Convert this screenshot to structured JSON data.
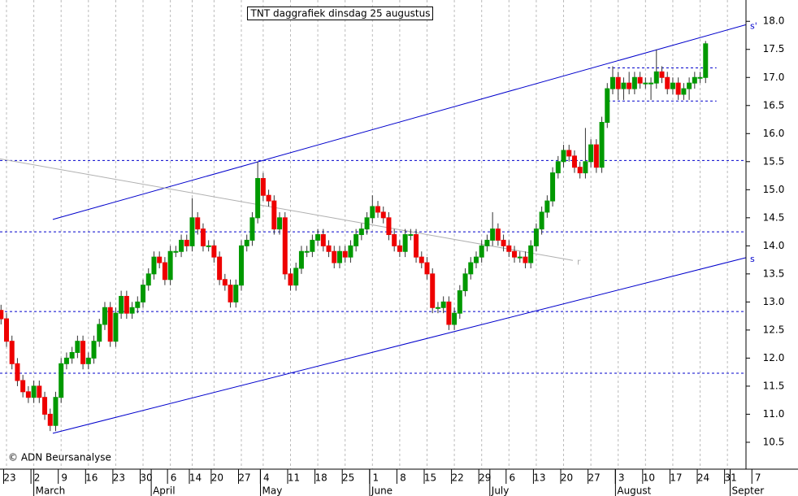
{
  "chart_data": {
    "type": "candlestick",
    "title": "TNT daggrafiek dinsdag 25 augustus",
    "credit": "© ADN Beursanalyse",
    "up_color": "#009900",
    "down_color": "#ee0000",
    "x": [
      -1,
      0,
      1,
      2,
      3,
      4,
      5,
      6,
      7,
      8,
      9,
      10,
      11,
      12,
      13,
      14,
      15,
      16,
      17,
      18,
      19,
      20,
      21,
      22,
      23,
      24,
      25,
      26,
      27,
      28,
      29,
      30,
      31,
      32,
      33,
      34,
      35,
      36,
      37,
      38,
      39,
      40,
      41,
      42,
      43,
      44,
      45,
      46,
      47,
      48,
      49,
      50,
      51,
      52,
      53,
      54,
      55,
      56,
      57,
      58,
      59,
      60,
      61,
      62,
      63,
      64,
      65,
      66,
      67,
      68,
      69,
      70,
      71,
      72,
      73,
      74,
      75,
      76,
      77,
      78,
      79,
      80,
      81,
      82,
      83,
      84,
      85,
      86,
      87,
      88,
      89,
      90,
      91,
      92,
      93,
      94,
      95,
      96,
      97,
      98,
      99,
      100,
      101,
      102,
      103,
      104,
      105,
      106,
      107,
      108,
      109,
      110,
      111,
      112,
      113,
      114,
      115,
      116,
      117,
      118,
      119,
      120,
      121,
      122,
      123,
      124,
      125,
      126,
      127,
      128
    ],
    "open": [
      12.85,
      12.7,
      12.3,
      11.9,
      11.6,
      11.4,
      11.3,
      11.5,
      11.3,
      11.0,
      10.8,
      11.3,
      11.9,
      12.0,
      12.1,
      12.3,
      11.9,
      12.0,
      12.3,
      12.6,
      12.9,
      12.3,
      12.8,
      13.1,
      12.8,
      12.9,
      13.0,
      13.3,
      13.5,
      13.8,
      13.7,
      13.4,
      13.9,
      13.9,
      14.1,
      14.0,
      14.5,
      14.3,
      14.0,
      14.0,
      13.8,
      13.4,
      13.3,
      13.0,
      13.3,
      14.0,
      14.1,
      14.5,
      15.2,
      14.9,
      14.8,
      14.3,
      14.5,
      13.5,
      13.3,
      13.6,
      13.9,
      13.9,
      14.1,
      14.2,
      14.0,
      13.9,
      13.7,
      13.9,
      13.8,
      14.0,
      14.2,
      14.3,
      14.5,
      14.7,
      14.6,
      14.5,
      14.2,
      14.0,
      13.9,
      14.2,
      14.2,
      13.8,
      13.7,
      13.5,
      12.9,
      12.9,
      13.0,
      12.6,
      12.8,
      13.2,
      13.5,
      13.7,
      13.8,
      14.0,
      14.1,
      14.3,
      14.1,
      14.0,
      13.9,
      13.8,
      13.8,
      13.7,
      14.0,
      14.3,
      14.6,
      14.8,
      15.3,
      15.5,
      15.7,
      15.6,
      15.4,
      15.3,
      15.5,
      15.8,
      15.4,
      16.2,
      16.8,
      17.0,
      16.8,
      16.9,
      16.8,
      17.0,
      16.9,
      16.9,
      16.9,
      17.1,
      17.0,
      16.8,
      16.9,
      16.7,
      16.8,
      16.9,
      17.0,
      17.0
    ],
    "high": [
      12.95,
      12.8,
      12.4,
      12.0,
      11.7,
      11.5,
      11.6,
      11.6,
      11.4,
      11.1,
      11.4,
      12.0,
      12.1,
      12.2,
      12.4,
      12.4,
      12.1,
      12.4,
      12.7,
      13.0,
      13.0,
      12.9,
      13.2,
      13.2,
      13.0,
      13.1,
      13.4,
      13.6,
      13.9,
      13.9,
      13.8,
      14.0,
      14.0,
      14.2,
      14.2,
      14.85,
      14.6,
      14.4,
      14.1,
      14.1,
      13.9,
      13.5,
      13.4,
      13.4,
      14.1,
      14.2,
      14.6,
      15.5,
      15.3,
      15.0,
      14.9,
      14.6,
      14.6,
      13.6,
      13.7,
      14.0,
      14.0,
      14.2,
      14.3,
      14.3,
      14.1,
      14.0,
      14.0,
      14.0,
      14.1,
      14.3,
      14.4,
      14.6,
      14.9,
      14.8,
      14.7,
      14.6,
      14.3,
      14.1,
      14.3,
      14.3,
      14.3,
      13.9,
      13.8,
      13.6,
      13.0,
      13.1,
      13.1,
      12.9,
      13.3,
      13.6,
      13.8,
      13.9,
      14.1,
      14.2,
      14.6,
      14.4,
      14.2,
      14.1,
      14.0,
      13.9,
      13.9,
      14.1,
      14.4,
      14.7,
      14.9,
      15.4,
      15.6,
      15.8,
      15.8,
      15.7,
      15.5,
      16.1,
      15.9,
      15.9,
      16.3,
      16.9,
      17.2,
      17.1,
      17.0,
      17.1,
      17.1,
      17.1,
      17.0,
      17.0,
      17.5,
      17.2,
      17.1,
      17.0,
      17.0,
      16.9,
      17.0,
      17.1,
      17.1,
      17.65
    ],
    "low": [
      12.6,
      12.2,
      11.8,
      11.5,
      11.3,
      11.2,
      11.2,
      11.2,
      10.9,
      10.7,
      10.7,
      11.2,
      11.8,
      11.9,
      12.0,
      11.8,
      11.8,
      11.9,
      12.2,
      12.5,
      12.2,
      12.2,
      12.7,
      12.7,
      12.7,
      12.8,
      12.9,
      13.2,
      13.4,
      13.6,
      13.3,
      13.3,
      13.8,
      13.8,
      13.9,
      13.9,
      14.2,
      13.9,
      13.9,
      13.7,
      13.3,
      13.2,
      12.9,
      12.9,
      13.2,
      13.9,
      14.0,
      14.4,
      14.8,
      14.7,
      14.2,
      14.2,
      13.4,
      13.2,
      13.2,
      13.5,
      13.8,
      13.8,
      14.0,
      13.9,
      13.8,
      13.6,
      13.6,
      13.7,
      13.7,
      13.9,
      14.1,
      14.2,
      14.4,
      14.5,
      14.4,
      14.1,
      13.9,
      13.8,
      13.8,
      14.1,
      13.7,
      13.6,
      13.4,
      12.8,
      12.8,
      12.8,
      12.5,
      12.5,
      12.7,
      13.1,
      13.4,
      13.6,
      13.7,
      13.9,
      14.0,
      14.0,
      13.9,
      13.8,
      13.7,
      13.7,
      13.6,
      13.6,
      13.9,
      14.2,
      14.5,
      14.7,
      15.2,
      15.4,
      15.5,
      15.3,
      15.2,
      15.2,
      15.4,
      15.3,
      15.3,
      16.1,
      16.7,
      16.6,
      16.6,
      16.7,
      16.7,
      16.8,
      16.8,
      16.6,
      16.8,
      16.9,
      16.7,
      16.7,
      16.6,
      16.6,
      16.6,
      16.8,
      16.9,
      16.9
    ],
    "close": [
      12.7,
      12.3,
      11.9,
      11.6,
      11.4,
      11.3,
      11.5,
      11.3,
      11.0,
      10.8,
      11.3,
      11.9,
      12.0,
      12.1,
      12.3,
      11.9,
      12.0,
      12.3,
      12.6,
      12.9,
      12.3,
      12.8,
      13.1,
      12.8,
      12.9,
      13.0,
      13.3,
      13.5,
      13.8,
      13.7,
      13.4,
      13.9,
      13.9,
      14.1,
      14.0,
      14.5,
      14.3,
      14.0,
      14.0,
      13.8,
      13.4,
      13.3,
      13.0,
      13.3,
      14.0,
      14.1,
      14.5,
      15.2,
      14.9,
      14.8,
      14.3,
      14.5,
      13.5,
      13.3,
      13.6,
      13.9,
      13.9,
      14.1,
      14.2,
      14.0,
      13.9,
      13.7,
      13.9,
      13.8,
      14.0,
      14.2,
      14.3,
      14.5,
      14.7,
      14.6,
      14.5,
      14.2,
      14.0,
      13.9,
      14.2,
      14.2,
      13.8,
      13.7,
      13.5,
      12.9,
      12.9,
      13.0,
      12.6,
      12.8,
      13.2,
      13.5,
      13.7,
      13.8,
      14.0,
      14.1,
      14.3,
      14.1,
      14.0,
      13.9,
      13.8,
      13.8,
      13.7,
      14.0,
      14.3,
      14.6,
      14.8,
      15.3,
      15.5,
      15.7,
      15.6,
      15.4,
      15.3,
      15.5,
      15.8,
      15.4,
      16.2,
      16.8,
      17.0,
      16.8,
      16.9,
      16.8,
      17.0,
      16.9,
      16.9,
      16.9,
      17.1,
      17.0,
      16.8,
      16.9,
      16.7,
      16.8,
      16.9,
      17.0,
      17.0,
      17.6
    ],
    "xlim": [
      -1.19,
      135.4
    ],
    "ylim": [
      10.05,
      18.38
    ],
    "yticks": [
      10.5,
      {
        "value": 11,
        "label": "11.0"
      },
      11.5,
      {
        "value": 12,
        "label": "12.0"
      },
      12.5,
      {
        "value": 13,
        "label": "13.0"
      },
      13.5,
      {
        "value": 14,
        "label": "14.0"
      },
      14.5,
      {
        "value": 15,
        "label": "15.0"
      },
      15.5,
      {
        "value": 16,
        "label": "16.0"
      },
      16.5,
      {
        "value": 17,
        "label": "17.0"
      },
      17.5,
      {
        "value": 18,
        "label": "18.0"
      }
    ],
    "xticks": [
      {
        "value": 0,
        "label": "23"
      },
      {
        "value": 5,
        "label": "2"
      },
      {
        "value": 10,
        "label": "9"
      },
      {
        "value": 15,
        "label": "16"
      },
      {
        "value": 20,
        "label": "23"
      },
      {
        "value": 25,
        "label": "30"
      },
      {
        "value": 30,
        "label": "6"
      },
      {
        "value": 34,
        "label": "14"
      },
      {
        "value": 38,
        "label": "20"
      },
      {
        "value": 43,
        "label": "27"
      },
      {
        "value": 47,
        "label": "4"
      },
      {
        "value": 52,
        "label": "11"
      },
      {
        "value": 57,
        "label": "18"
      },
      {
        "value": 62,
        "label": "25"
      },
      {
        "value": 67,
        "label": "1"
      },
      {
        "value": 72,
        "label": "8"
      },
      {
        "value": 77,
        "label": "15"
      },
      {
        "value": 82,
        "label": "22"
      },
      {
        "value": 87,
        "label": "29"
      },
      {
        "value": 92,
        "label": "6"
      },
      {
        "value": 97,
        "label": "13"
      },
      {
        "value": 102,
        "label": "20"
      },
      {
        "value": 107,
        "label": "27"
      },
      {
        "value": 112,
        "label": "3"
      },
      {
        "value": 117,
        "label": "10"
      },
      {
        "value": 122,
        "label": "17"
      },
      {
        "value": 127,
        "label": "24"
      },
      {
        "value": 132,
        "label": "31"
      },
      {
        "value": 137,
        "label": "7"
      }
    ],
    "month_ticks": [
      {
        "value": 5,
        "label": "March"
      },
      {
        "value": 26.5,
        "label": "April"
      },
      {
        "value": 46.5,
        "label": "May"
      },
      {
        "value": 66.5,
        "label": "June"
      },
      {
        "value": 88.5,
        "label": "July"
      },
      {
        "value": 111.5,
        "label": "August"
      },
      {
        "value": 132.5,
        "label": "Septer"
      }
    ],
    "levels": [
      {
        "value": 17.17,
        "xrange": [
          110.1,
          130
        ]
      },
      {
        "value": 16.58,
        "xrange": [
          110.1,
          130
        ]
      },
      {
        "value": 15.52
      },
      {
        "value": 14.25
      },
      {
        "value": 12.83
      },
      {
        "value": 11.73
      }
    ],
    "level_color": "#0000cc",
    "trendlines": [
      {
        "label": "s'",
        "color": "#0000cc",
        "x": [
          8.48,
          135.4
        ],
        "y": [
          14.47,
          17.94
        ]
      },
      {
        "label": "s",
        "color": "#0000cc",
        "x": [
          8.48,
          135.4
        ],
        "y": [
          10.66,
          13.79
        ]
      },
      {
        "label": "r",
        "color": "#b0b0b0",
        "x": [
          -1.19,
          103.7
        ],
        "y": [
          15.55,
          13.74
        ]
      }
    ]
  }
}
